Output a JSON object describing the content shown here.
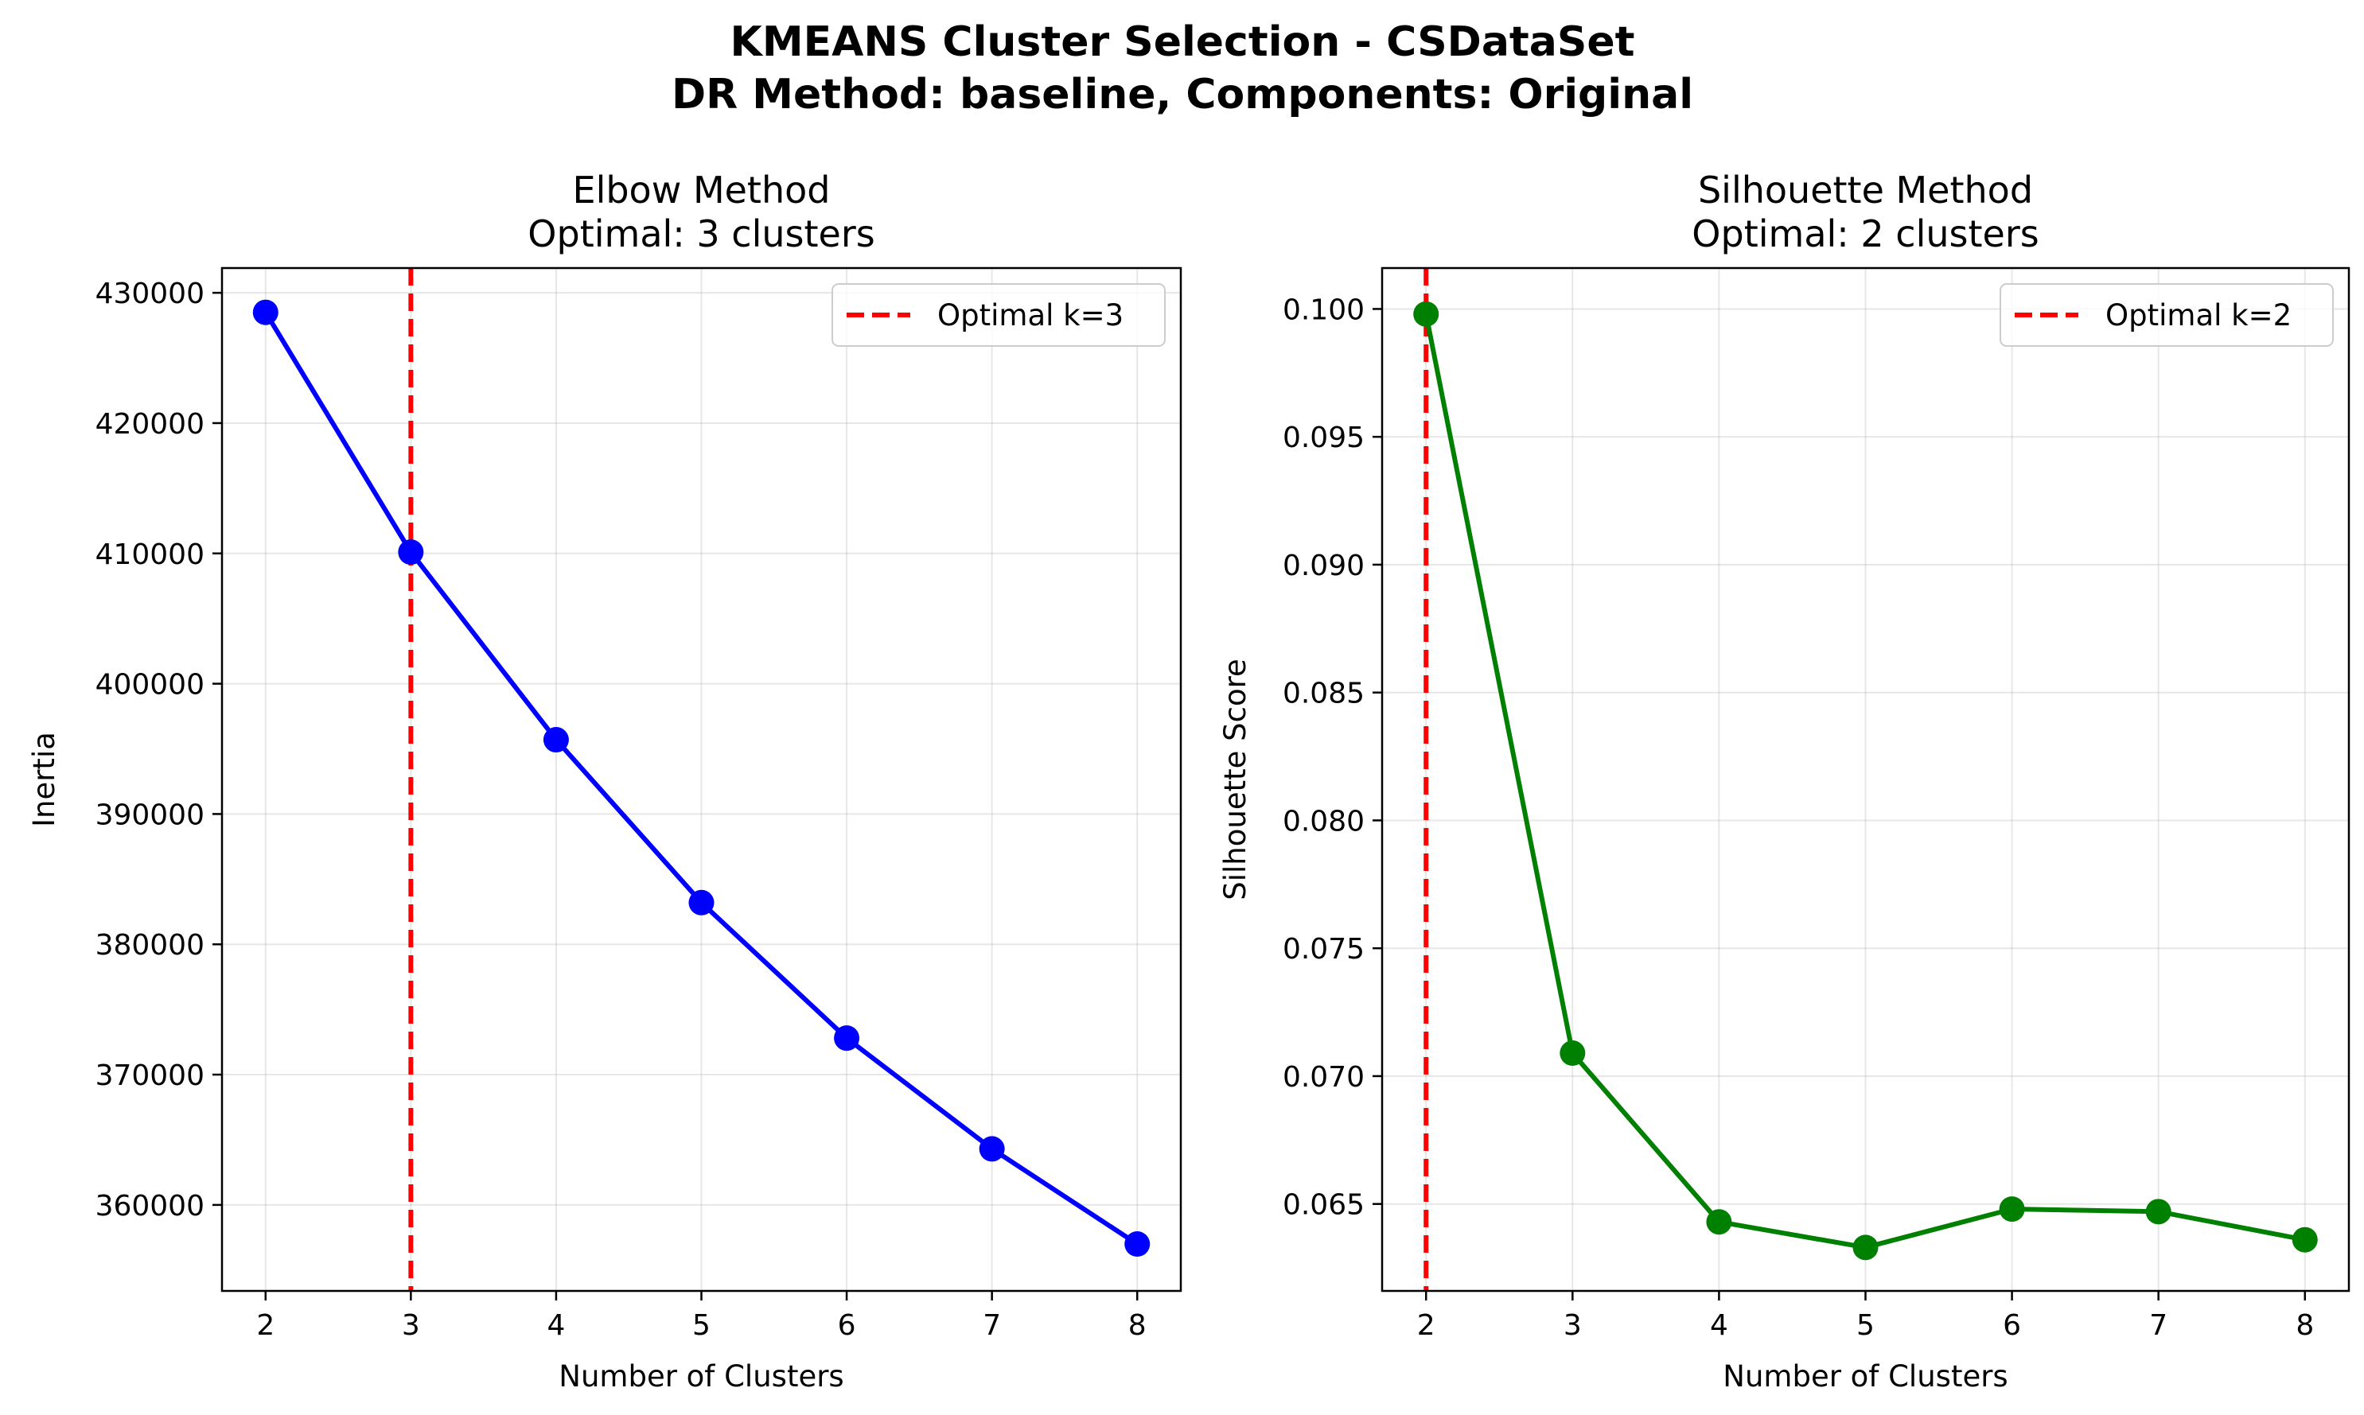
{
  "figure": {
    "title_line1": "KMEANS Cluster Selection - CSDataSet",
    "title_line2": "DR Method: baseline, Components: Original"
  },
  "chart_data": [
    {
      "type": "line",
      "title_line1": "Elbow Method",
      "title_line2": "Optimal: 3 clusters",
      "xlabel": "Number of Clusters",
      "ylabel": "Inertia",
      "x": [
        2,
        3,
        4,
        5,
        6,
        7,
        8
      ],
      "series": [
        {
          "values": [
            428500,
            410100,
            395700,
            383200,
            372800,
            364300,
            357000
          ],
          "color": "#0000ff"
        }
      ],
      "xticks": [
        2,
        3,
        4,
        5,
        6,
        7,
        8
      ],
      "yticks": [
        360000,
        370000,
        380000,
        390000,
        400000,
        410000,
        420000,
        430000
      ],
      "ytick_labels": [
        "360000",
        "370000",
        "380000",
        "390000",
        "400000",
        "410000",
        "420000",
        "430000"
      ],
      "xlim": [
        1.7,
        8.3
      ],
      "ylim": [
        353400,
        431900
      ],
      "optimal_k": 3,
      "vline_color": "#ff0000",
      "legend": {
        "label": "Optimal k=3",
        "position": "top-right"
      },
      "grid": true
    },
    {
      "type": "line",
      "title_line1": "Silhouette Method",
      "title_line2": "Optimal: 2 clusters",
      "xlabel": "Number of Clusters",
      "ylabel": "Silhouette Score",
      "x": [
        2,
        3,
        4,
        5,
        6,
        7,
        8
      ],
      "series": [
        {
          "values": [
            0.0998,
            0.0709,
            0.0643,
            0.0633,
            0.0648,
            0.0647,
            0.0636
          ],
          "color": "#008000"
        }
      ],
      "xticks": [
        2,
        3,
        4,
        5,
        6,
        7,
        8
      ],
      "yticks": [
        0.065,
        0.07,
        0.075,
        0.08,
        0.085,
        0.09,
        0.095,
        0.1
      ],
      "ytick_labels": [
        "0.065",
        "0.070",
        "0.075",
        "0.080",
        "0.085",
        "0.090",
        "0.095",
        "0.100"
      ],
      "xlim": [
        1.7,
        8.3
      ],
      "ylim": [
        0.0616,
        0.1016
      ],
      "optimal_k": 2,
      "vline_color": "#ff0000",
      "legend": {
        "label": "Optimal k=2",
        "position": "top-right"
      },
      "grid": true
    }
  ]
}
